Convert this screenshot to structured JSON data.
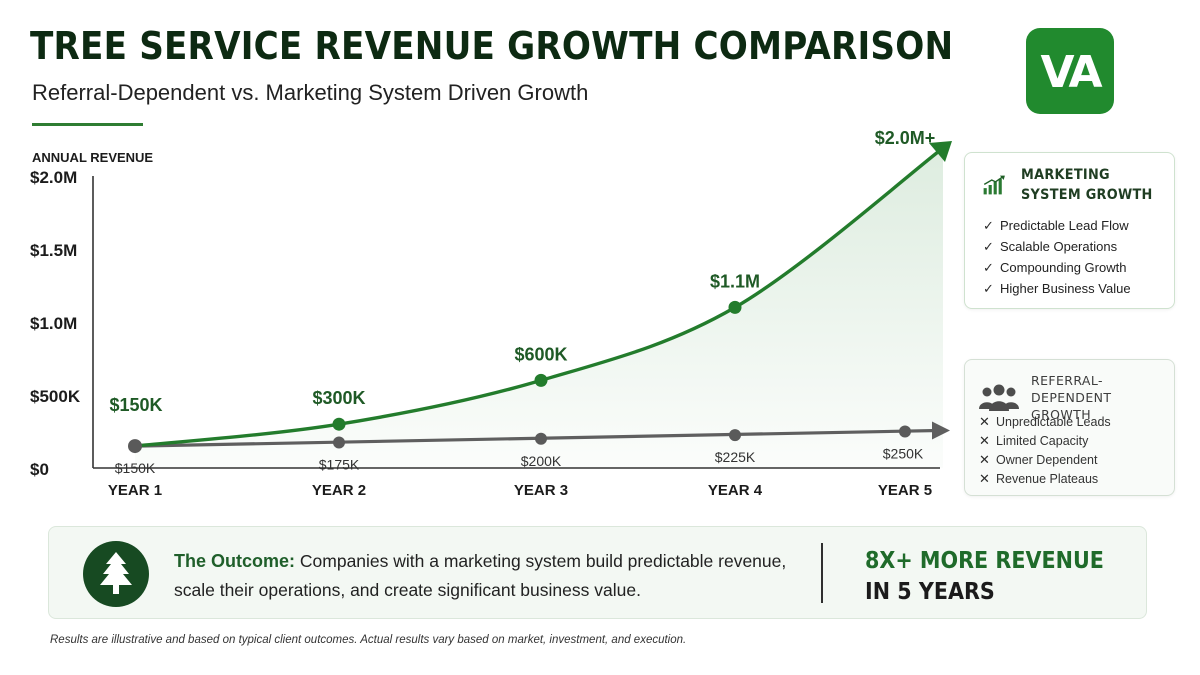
{
  "header": {
    "title": "TREE SERVICE REVENUE GROWTH COMPARISON",
    "subtitle": "Referral-Dependent vs. Marketing System Driven Growth",
    "logo_text": "VA"
  },
  "colors": {
    "marketing_series": "#237c2c",
    "referral_series": "#5f5f5f",
    "brand_green": "#218a2e",
    "dark_green": "#174a22"
  },
  "chart_data": {
    "type": "line",
    "ylabel": "ANNUAL REVENUE",
    "xlabel": "",
    "categories": [
      "YEAR 1",
      "YEAR 2",
      "YEAR 3",
      "YEAR 4",
      "YEAR 5"
    ],
    "ylim": [
      0,
      2000000
    ],
    "yticks": [
      {
        "value": 0,
        "label": "$0"
      },
      {
        "value": 500000,
        "label": "$500K"
      },
      {
        "value": 1000000,
        "label": "$1.0M"
      },
      {
        "value": 1500000,
        "label": "$1.5M"
      },
      {
        "value": 2000000,
        "label": "$2.0M"
      }
    ],
    "grid": false,
    "legend": "right",
    "series": [
      {
        "name": "MARKETING SYSTEM GROWTH",
        "values": [
          150000,
          300000,
          600000,
          1100000,
          2000000
        ],
        "labels": [
          "$150K",
          "$300K",
          "$600K",
          "$1.1M",
          "$2.0M+"
        ],
        "trend": "exponential",
        "area_fill": true
      },
      {
        "name": "REFERRAL-DEPENDENT GROWTH",
        "values": [
          150000,
          175000,
          200000,
          225000,
          250000
        ],
        "labels": [
          "$150K",
          "$175K",
          "$200K",
          "$225K",
          "$250K"
        ],
        "trend": "flat"
      }
    ]
  },
  "legend_panels": {
    "marketing": {
      "title": "MARKETING SYSTEM GROWTH",
      "icon": "bar-chart-growth-icon",
      "mark": "✓",
      "items": [
        "Predictable Lead Flow",
        "Scalable Operations",
        "Compounding Growth",
        "Higher Business Value"
      ]
    },
    "referral": {
      "title": "REFERRAL-DEPENDENT GROWTH",
      "icon": "people-group-icon",
      "mark": "✕",
      "items": [
        "Unpredictable Leads",
        "Limited Capacity",
        "Owner Dependent",
        "Revenue Plateaus"
      ]
    }
  },
  "outcome": {
    "icon": "pine-tree-icon",
    "lead": "The Outcome:",
    "text": "Companies with a marketing system build predictable revenue, scale their operations, and create significant business value.",
    "stat_line1": "8X+ MORE REVENUE",
    "stat_line2": "IN 5 YEARS"
  },
  "footnote": "Results are illustrative and based on typical client outcomes. Actual results vary based on market, investment, and execution."
}
